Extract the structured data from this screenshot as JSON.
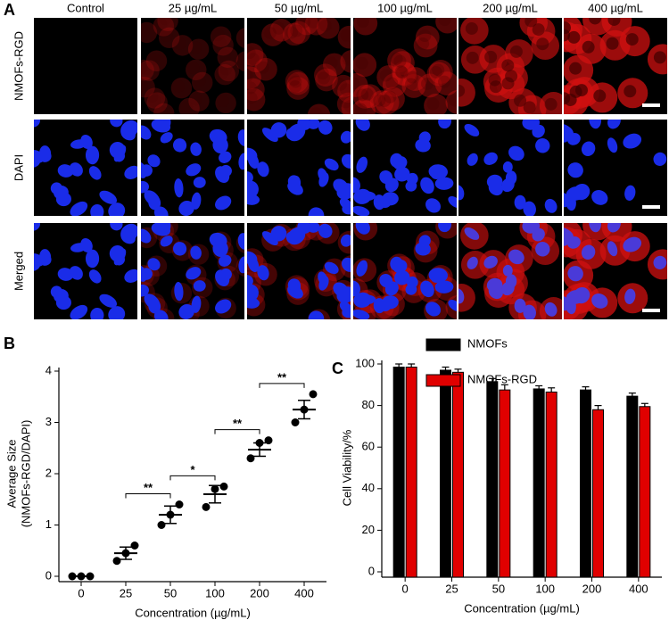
{
  "panel_a": {
    "label": "A",
    "columns": [
      "Control",
      "25 µg/mL",
      "50 µg/mL",
      "100 µg/mL",
      "200 µg/mL",
      "400 µg/mL"
    ],
    "rows": [
      "NMOFs-RGD",
      "DAPI",
      "Merged"
    ]
  },
  "chart_data": [
    {
      "type": "scatter",
      "label": "B",
      "ylabel": [
        "Average Size",
        "(NMOFs-RGD/DAPI)"
      ],
      "xlabel": "Concentration (µg/mL)",
      "categories": [
        "0",
        "25",
        "50",
        "100",
        "200",
        "400"
      ],
      "points": [
        [
          0,
          0,
          0
        ],
        [
          0.3,
          0.45,
          0.6
        ],
        [
          1.0,
          1.2,
          1.4
        ],
        [
          1.35,
          1.7,
          1.75
        ],
        [
          2.3,
          2.6,
          2.65
        ],
        [
          3.0,
          3.25,
          3.55
        ]
      ],
      "means": [
        0,
        0.45,
        1.2,
        1.6,
        2.47,
        3.25
      ],
      "sem": [
        0,
        0.12,
        0.17,
        0.17,
        0.13,
        0.18
      ],
      "significance": [
        {
          "pair": [
            1,
            2
          ],
          "label": "**"
        },
        {
          "pair": [
            2,
            3
          ],
          "label": "*"
        },
        {
          "pair": [
            3,
            4
          ],
          "label": "**"
        },
        {
          "pair": [
            4,
            5
          ],
          "label": "**"
        }
      ],
      "color": "#000000",
      "ylim": [
        0,
        4
      ],
      "yticks": [
        0,
        1,
        2,
        3,
        4
      ]
    },
    {
      "type": "bar",
      "label": "C",
      "ylabel": "Cell Viability/%",
      "xlabel": "Concentration (µg/mL)",
      "categories": [
        "0",
        "25",
        "50",
        "100",
        "200",
        "400"
      ],
      "series": [
        {
          "name": "NMOFs",
          "color": "#000000",
          "values": [
            98.5,
            97,
            91.5,
            88,
            87.5,
            84.5
          ],
          "errors": [
            1.5,
            1.5,
            1.5,
            1.5,
            1.5,
            1.5
          ]
        },
        {
          "name": "NMOFs-RGD",
          "color": "#e00000",
          "values": [
            98.5,
            96,
            87.5,
            86.5,
            78,
            79.5
          ],
          "errors": [
            1.5,
            1.5,
            2.5,
            2,
            2,
            1.5
          ]
        }
      ],
      "ylim": [
        0,
        100
      ],
      "yticks": [
        0,
        20,
        40,
        60,
        80,
        100
      ]
    }
  ]
}
